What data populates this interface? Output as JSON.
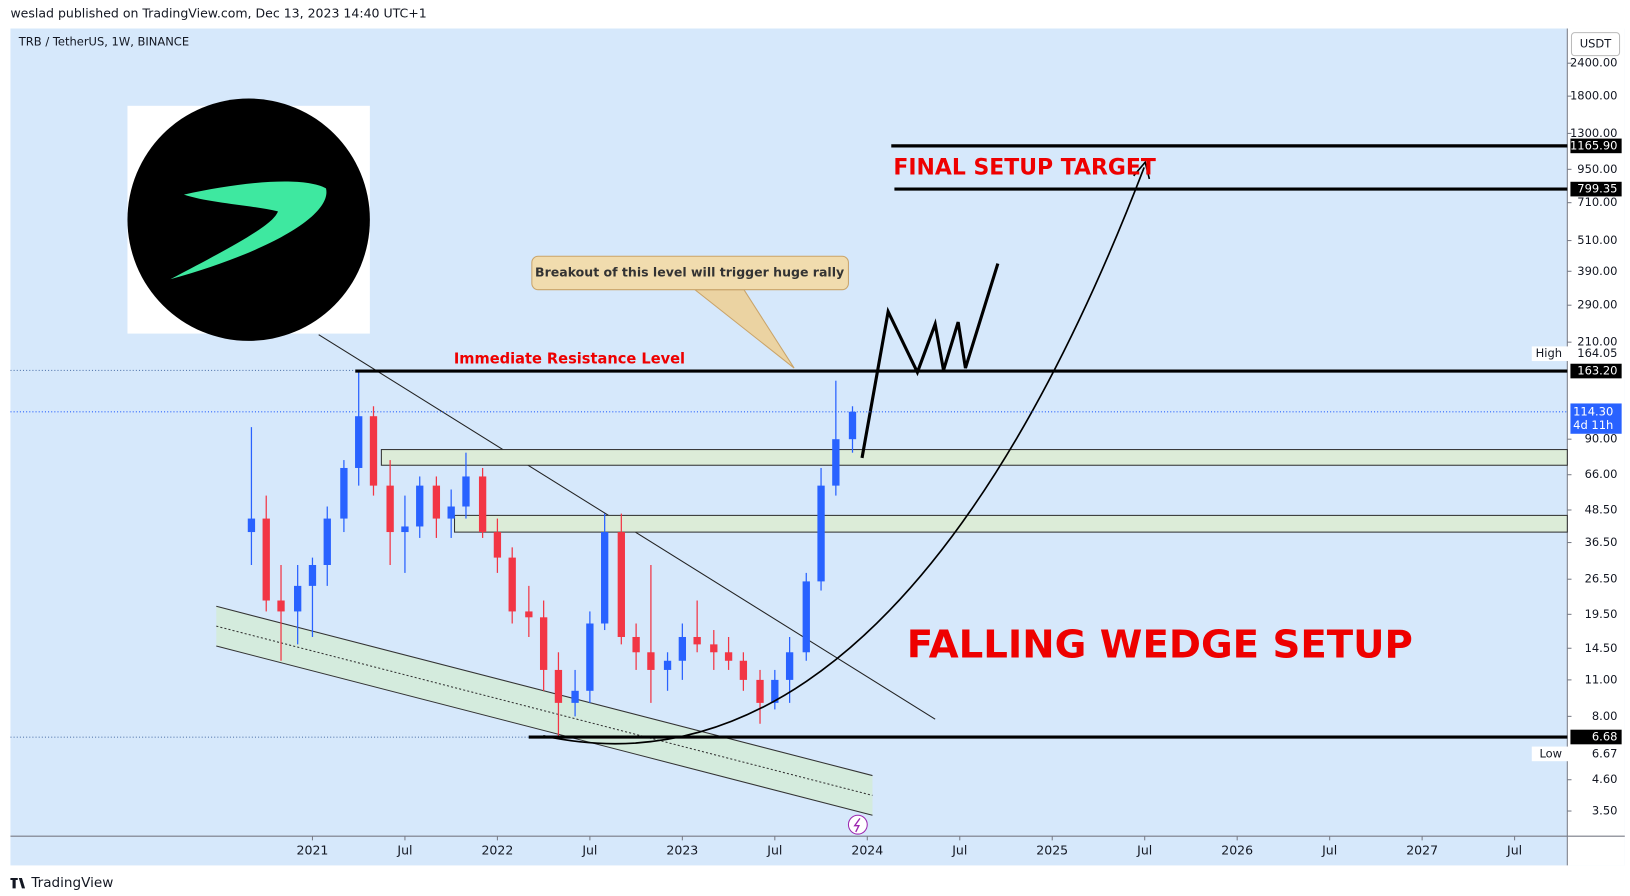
{
  "header": {
    "text": "weslad published on TradingView.com, Dec 13, 2023 14:40 UTC+1"
  },
  "chart_data": {
    "type": "candlestick",
    "title": "TRB / TetherUS, 1W, BINANCE",
    "currency": "USDT",
    "x": [
      2020.67,
      2020.75,
      2020.83,
      2020.92,
      2021.0,
      2021.08,
      2021.17,
      2021.25,
      2021.33,
      2021.42,
      2021.5,
      2021.58,
      2021.67,
      2021.75,
      2021.83,
      2021.92,
      2022.0,
      2022.08,
      2022.17,
      2022.25,
      2022.33,
      2022.42,
      2022.5,
      2022.58,
      2022.67,
      2022.75,
      2022.83,
      2022.92,
      2023.0,
      2023.08,
      2023.17,
      2023.25,
      2023.33,
      2023.42,
      2023.5,
      2023.58,
      2023.67,
      2023.75,
      2023.83,
      2023.92
    ],
    "open": [
      40,
      45,
      22,
      20,
      25,
      30,
      45,
      70,
      110,
      60,
      40,
      42,
      60,
      45,
      50,
      65,
      40,
      32,
      20,
      19,
      12,
      9,
      10,
      18,
      40,
      16,
      14,
      12,
      13,
      16,
      15,
      14,
      13,
      11,
      9,
      11,
      14,
      26,
      60,
      90
    ],
    "high": [
      100,
      55,
      30,
      30,
      32,
      50,
      75,
      164.05,
      120,
      75,
      55,
      65,
      65,
      58,
      80,
      70,
      45,
      35,
      25,
      22,
      14,
      12,
      20,
      47,
      47,
      18,
      30,
      14,
      18,
      22,
      17,
      16,
      14,
      12,
      12,
      16,
      28,
      70,
      150,
      120
    ],
    "low": [
      30,
      20,
      13,
      15,
      16,
      25,
      40,
      60,
      55,
      30,
      28,
      38,
      38,
      38,
      45,
      38,
      28,
      18,
      16,
      10,
      6.67,
      8,
      9,
      17,
      15,
      12,
      9,
      10,
      11,
      14,
      12,
      12,
      10,
      7.5,
      8.5,
      9,
      13,
      24,
      55,
      80
    ],
    "close": [
      45,
      22,
      20,
      25,
      30,
      45,
      70,
      110,
      60,
      40,
      42,
      60,
      45,
      50,
      65,
      40,
      32,
      20,
      19,
      12,
      9,
      10,
      18,
      40,
      16,
      14,
      12,
      13,
      16,
      15,
      14,
      13,
      11,
      9,
      11,
      14,
      26,
      60,
      90,
      114.3
    ],
    "up_color": "#2962ff",
    "down_color": "#f23645",
    "background": "#d6e8fb",
    "log_scale": true,
    "xlim": [
      2019.367,
      2027.785
    ],
    "ylim": [
      2.81,
      3250
    ],
    "xticks": [
      {
        "value": 2021,
        "label": "2021"
      },
      {
        "value": 2021.5,
        "label": "Jul"
      },
      {
        "value": 2022,
        "label": "2022"
      },
      {
        "value": 2022.5,
        "label": "Jul"
      },
      {
        "value": 2023,
        "label": "2023"
      },
      {
        "value": 2023.5,
        "label": "Jul"
      },
      {
        "value": 2024,
        "label": "2024"
      },
      {
        "value": 2024.5,
        "label": "Jul"
      },
      {
        "value": 2025,
        "label": "2025"
      },
      {
        "value": 2025.5,
        "label": "Jul"
      },
      {
        "value": 2026,
        "label": "2026"
      },
      {
        "value": 2026.5,
        "label": "Jul"
      },
      {
        "value": 2027,
        "label": "2027"
      },
      {
        "value": 2027.5,
        "label": "Jul"
      }
    ],
    "yticks": [
      {
        "value": 2400,
        "label": "2400.00"
      },
      {
        "value": 1800,
        "label": "1800.00"
      },
      {
        "value": 1300,
        "label": "1300.00"
      },
      {
        "value": 950,
        "label": "950.00"
      },
      {
        "value": 710,
        "label": "710.00"
      },
      {
        "value": 510,
        "label": "510.00"
      },
      {
        "value": 390,
        "label": "390.00"
      },
      {
        "value": 290,
        "label": "290.00"
      },
      {
        "value": 210,
        "label": "210.00"
      },
      {
        "value": 90,
        "label": "90.00"
      },
      {
        "value": 66,
        "label": "66.00"
      },
      {
        "value": 48.5,
        "label": "48.50"
      },
      {
        "value": 36.5,
        "label": "36.50"
      },
      {
        "value": 26.5,
        "label": "26.50"
      },
      {
        "value": 19.5,
        "label": "19.50"
      },
      {
        "value": 14.5,
        "label": "14.50"
      },
      {
        "value": 11,
        "label": "11.00"
      },
      {
        "value": 8,
        "label": "8.00"
      },
      {
        "value": 4.6,
        "label": "4.60"
      },
      {
        "value": 3.5,
        "label": "3.50"
      }
    ],
    "price_lines": [
      {
        "value": 1165.9,
        "label": "1165.90",
        "style": "solid"
      },
      {
        "value": 799.35,
        "label": "799.35",
        "style": "solid"
      },
      {
        "value": 163.2,
        "label": "163.20",
        "style": "solid"
      },
      {
        "value": 6.68,
        "label": "6.68",
        "style": "solid"
      },
      {
        "value": 164.05,
        "label": "164.05",
        "tag": "High",
        "style": "dotted"
      },
      {
        "value": 6.67,
        "label": "6.67",
        "tag": "Low",
        "style": "dotted"
      },
      {
        "value": 114.3,
        "label": "114.30",
        "countdown": "4d 11h",
        "style": "current"
      }
    ],
    "annotations": {
      "breakout": "Breakout of this level will trigger huge rally",
      "resistance": "Immediate Resistance Level",
      "target": "FINAL SETUP TARGET",
      "pattern": "FALLING WEDGE SETUP"
    }
  },
  "footer": {
    "brand": "TradingView"
  }
}
